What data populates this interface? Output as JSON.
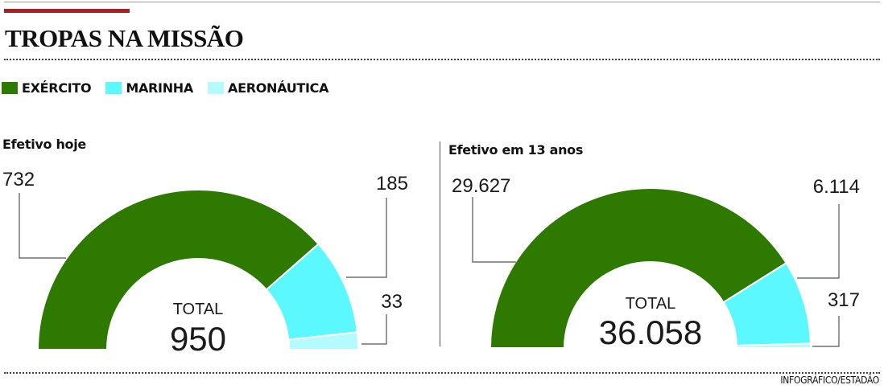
{
  "header": {
    "title": "TROPAS NA MISSÃO"
  },
  "legend": [
    {
      "label": "EXÉRCITO",
      "color": "#2e7a00"
    },
    {
      "label": "MARINHA",
      "color": "#5cf8ff"
    },
    {
      "label": "AERONÁUTICA",
      "color": "#b4fbff"
    }
  ],
  "chart_data": [
    {
      "type": "pie",
      "subtype": "half-donut",
      "title": "Efetivo hoje",
      "categories": [
        "EXÉRCITO",
        "MARINHA",
        "AERONÁUTICA"
      ],
      "values": [
        732,
        185,
        33
      ],
      "value_labels": [
        "732",
        "185",
        "33"
      ],
      "colors": [
        "#2e7a00",
        "#5cf8ff",
        "#b4fbff"
      ],
      "total_label": "TOTAL",
      "total_value": 950,
      "total_text": "950"
    },
    {
      "type": "pie",
      "subtype": "half-donut",
      "title": "Efetivo em 13 anos",
      "categories": [
        "EXÉRCITO",
        "MARINHA",
        "AERONÁUTICA"
      ],
      "values": [
        29627,
        6114,
        317
      ],
      "value_labels": [
        "29.627",
        "6.114",
        "317"
      ],
      "colors": [
        "#2e7a00",
        "#5cf8ff",
        "#b4fbff"
      ],
      "total_label": "TOTAL",
      "total_value": 36058,
      "total_text": "36.058"
    }
  ],
  "footer": {
    "credit": "INFOGRÁFICO/ESTADÃO"
  }
}
